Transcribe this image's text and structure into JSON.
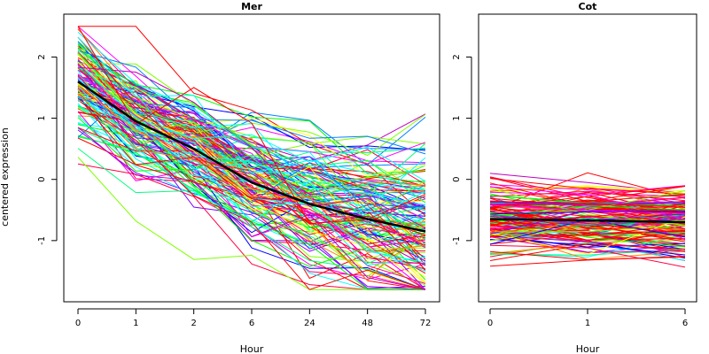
{
  "ylabel": "centered expression",
  "chart_data": [
    {
      "type": "line",
      "title": "Mer",
      "xlabel": "Hour",
      "ylabel": "centered expression",
      "x": [
        "0",
        "1",
        "2",
        "6",
        "24",
        "48",
        "72"
      ],
      "ylim": [
        -2.0,
        2.7
      ],
      "yticks": [
        "-1",
        "0",
        "1",
        "2"
      ],
      "grid": false,
      "legend": "none",
      "profile_count": 150,
      "mean_profile": [
        1.6,
        0.95,
        0.5,
        -0.05,
        -0.4,
        -0.65,
        -0.85
      ],
      "mean_color": "#000000"
    },
    {
      "type": "line",
      "title": "Cot",
      "xlabel": "Hour",
      "x": [
        "0",
        "1",
        "6"
      ],
      "ylim": [
        -2.0,
        2.7
      ],
      "yticks": [
        "-1",
        "0",
        "1",
        "2"
      ],
      "grid": false,
      "legend": "none",
      "profile_count": 150,
      "mean_profile": [
        -0.65,
        -0.67,
        -0.7
      ],
      "mean_color": "#000000",
      "accent_color": "#ff0000"
    }
  ],
  "colors": [
    "#ff0000",
    "#ff00ff",
    "#ff0080",
    "#c000c0",
    "#8000ff",
    "#0000ff",
    "#0080ff",
    "#00ffff",
    "#00ff80",
    "#00ff00",
    "#80ff00",
    "#ffff00",
    "#ff8000",
    "#ff0040"
  ]
}
